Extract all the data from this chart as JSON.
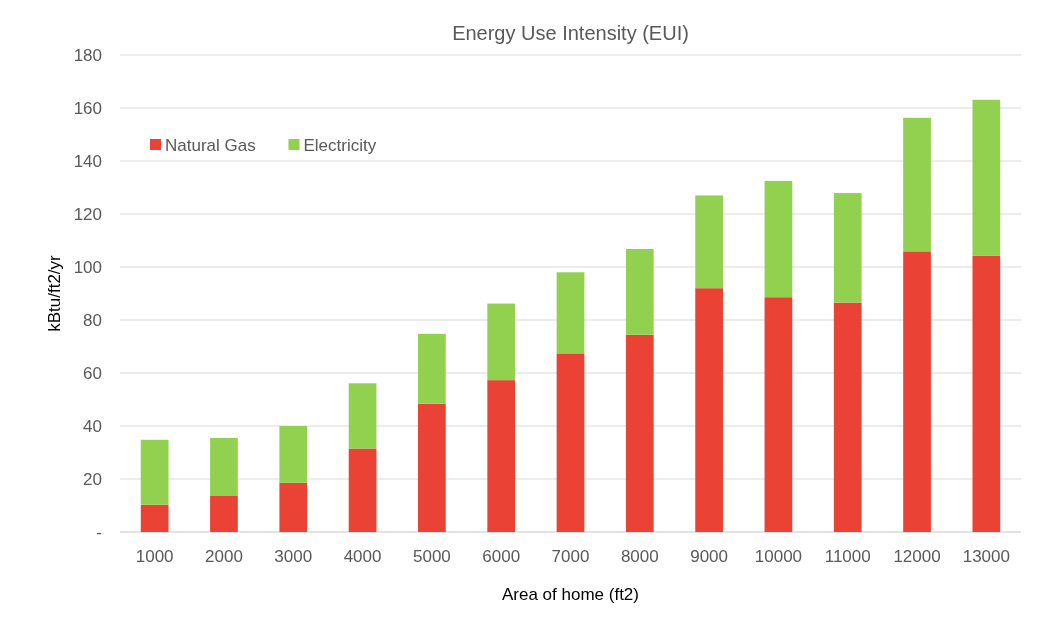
{
  "chart_data": {
    "type": "bar",
    "title": "Energy Use Intensity (EUI)",
    "xlabel": "Area of home (ft2)",
    "ylabel": "kBtu/ft2/yr",
    "categories": [
      "1000",
      "2000",
      "3000",
      "4000",
      "5000",
      "6000",
      "7000",
      "8000",
      "9000",
      "10000",
      "11000",
      "12000",
      "13000"
    ],
    "stacked": true,
    "series": [
      {
        "name": "Natural Gas",
        "color": "#ea4335",
        "values": [
          10.3,
          13.8,
          18.6,
          31.5,
          48.4,
          57.3,
          67.4,
          74.4,
          92.0,
          88.6,
          86.6,
          105.9,
          104.3
        ]
      },
      {
        "name": "Electricity",
        "color": "#92d050",
        "values": [
          24.5,
          21.7,
          21.4,
          24.6,
          26.4,
          28.9,
          30.6,
          32.4,
          35.0,
          43.9,
          41.3,
          50.4,
          58.8
        ]
      }
    ],
    "ylim": [
      0,
      180
    ],
    "yticks": [
      {
        "value": 0,
        "label": "-"
      },
      20,
      40,
      60,
      80,
      100,
      120,
      140,
      160,
      180
    ],
    "grid": "y",
    "legend": "top left"
  }
}
